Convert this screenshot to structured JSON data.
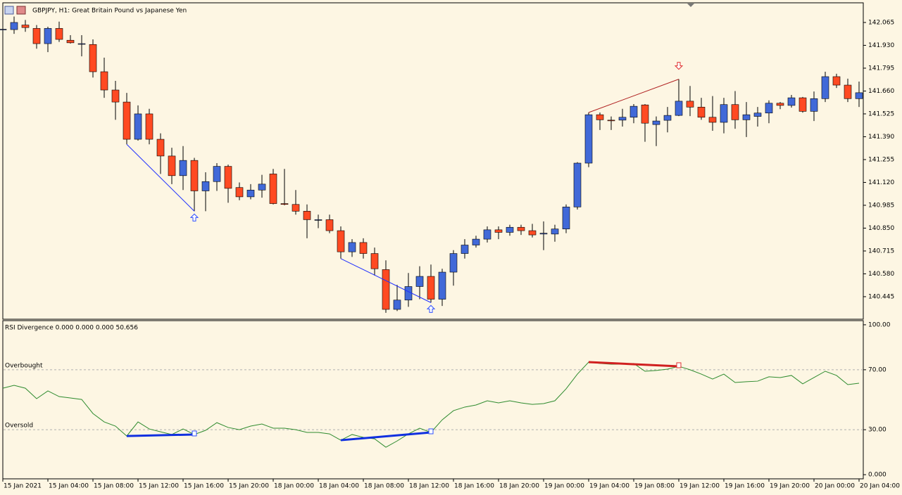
{
  "chart_data": [
    {
      "type": "candlestick",
      "title": "GBPJPY, H1:  Great Britain Pound vs Japanese Yen",
      "categories": [
        "15 Jan 2021",
        null,
        null,
        null,
        "15 Jan 04:00",
        null,
        null,
        null,
        "15 Jan 08:00",
        null,
        null,
        null,
        "15 Jan 12:00",
        null,
        null,
        null,
        "15 Jan 16:00",
        null,
        null,
        null,
        "15 Jan 20:00",
        null,
        null,
        null,
        "18 Jan 00:00",
        null,
        null,
        null,
        "18 Jan 04:00",
        null,
        null,
        null,
        "18 Jan 08:00",
        null,
        null,
        null,
        "18 Jan 12:00",
        null,
        null,
        null,
        "18 Jan 16:00",
        null,
        null,
        null,
        "18 Jan 20:00",
        null,
        null,
        null,
        "19 Jan 00:00",
        null,
        null,
        null,
        "19 Jan 04:00",
        null,
        null,
        null,
        "19 Jan 08:00",
        null,
        null,
        null,
        "19 Jan 12:00",
        null,
        null,
        null,
        "19 Jan 16:00",
        null,
        null,
        null,
        "19 Jan 20:00",
        null,
        null,
        null,
        "20 Jan 00:00",
        null,
        null,
        null,
        "20 Jan 04:00"
      ],
      "open": [
        142.025,
        142.023,
        142.05,
        142.03,
        141.94,
        142.03,
        141.96,
        141.94,
        141.935,
        141.774,
        141.666,
        141.595,
        141.375,
        141.525,
        141.375,
        141.276,
        141.16,
        141.25,
        141.07,
        141.125,
        141.215,
        141.09,
        141.035,
        141.075,
        141.17,
        140.995,
        140.99,
        140.95,
        140.9,
        140.9,
        140.835,
        140.71,
        140.765,
        140.7,
        140.605,
        140.37,
        140.425,
        140.505,
        140.565,
        140.43,
        140.59,
        140.7,
        140.75,
        140.785,
        140.84,
        140.825,
        140.855,
        140.835,
        140.815,
        140.815,
        140.845,
        140.975,
        141.234,
        141.52,
        141.488,
        141.488,
        141.505,
        141.578,
        141.462,
        141.487,
        141.516,
        141.6,
        141.565,
        141.505,
        141.475,
        141.58,
        141.49,
        141.51,
        141.53,
        141.588,
        141.575,
        141.62,
        141.54,
        141.615,
        141.745,
        141.695,
        141.615
      ],
      "high": [
        142.03,
        142.1,
        142.08,
        142.05,
        142.04,
        142.07,
        141.99,
        141.99,
        141.965,
        141.857,
        141.72,
        141.649,
        141.575,
        141.555,
        141.41,
        141.325,
        141.335,
        141.265,
        141.18,
        141.234,
        141.225,
        141.12,
        141.11,
        141.165,
        141.2,
        141.2,
        141.075,
        140.99,
        140.93,
        140.93,
        140.86,
        140.785,
        140.79,
        140.735,
        140.66,
        140.515,
        140.585,
        140.625,
        140.635,
        140.61,
        140.72,
        140.785,
        140.805,
        140.86,
        140.86,
        140.87,
        140.87,
        140.875,
        140.89,
        140.87,
        140.99,
        141.24,
        141.533,
        141.533,
        141.51,
        141.555,
        141.583,
        141.583,
        141.51,
        141.566,
        141.73,
        141.69,
        141.62,
        141.63,
        141.62,
        141.66,
        141.595,
        141.566,
        141.605,
        141.595,
        141.637,
        141.625,
        141.657,
        141.774,
        141.762,
        141.733,
        141.716
      ],
      "low": [
        142.02,
        141.998,
        142.01,
        141.91,
        141.89,
        141.95,
        141.94,
        141.865,
        141.74,
        141.62,
        141.49,
        141.345,
        141.367,
        141.345,
        141.17,
        141.11,
        141.075,
        140.95,
        140.95,
        141.07,
        141.0,
        141.015,
        141.02,
        141.03,
        140.99,
        140.985,
        140.93,
        140.79,
        140.85,
        140.82,
        140.67,
        140.68,
        140.67,
        140.57,
        140.35,
        140.36,
        140.385,
        140.43,
        140.41,
        140.39,
        140.51,
        140.67,
        140.735,
        140.765,
        140.785,
        140.805,
        140.81,
        140.795,
        140.72,
        140.77,
        140.82,
        140.96,
        141.21,
        141.43,
        141.43,
        141.45,
        141.47,
        141.36,
        141.335,
        141.416,
        141.512,
        141.512,
        141.49,
        141.425,
        141.41,
        141.437,
        141.388,
        141.45,
        141.47,
        141.553,
        141.562,
        141.532,
        141.483,
        141.595,
        141.678,
        141.595,
        141.566
      ],
      "close": [
        142.025,
        142.065,
        142.035,
        141.94,
        142.03,
        141.965,
        141.945,
        141.94,
        141.774,
        141.666,
        141.595,
        141.375,
        141.525,
        141.375,
        141.276,
        141.16,
        141.25,
        141.07,
        141.125,
        141.215,
        141.085,
        141.035,
        141.075,
        141.11,
        140.995,
        140.99,
        140.95,
        140.9,
        140.9,
        140.835,
        140.71,
        140.765,
        140.7,
        140.61,
        140.37,
        140.425,
        140.505,
        140.565,
        140.43,
        140.59,
        140.7,
        140.75,
        140.785,
        140.84,
        140.825,
        140.855,
        140.835,
        140.81,
        140.82,
        140.845,
        140.975,
        141.234,
        141.52,
        141.49,
        141.487,
        141.505,
        141.57,
        141.47,
        141.483,
        141.516,
        141.6,
        141.565,
        141.505,
        141.475,
        141.58,
        141.49,
        141.52,
        141.53,
        141.588,
        141.575,
        141.62,
        141.54,
        141.615,
        141.745,
        141.695,
        141.615,
        141.65
      ],
      "up_color": "#4169d8",
      "down_color": "#ff4a22",
      "ylim": [
        140.316,
        142.177
      ],
      "yticks": [
        142.065,
        {
          "value": 141.93,
          "label": "141.930"
        },
        141.795,
        {
          "value": 141.66,
          "label": "141.660"
        },
        141.525,
        {
          "value": 141.39,
          "label": "141.390"
        },
        141.255,
        {
          "value": 141.12,
          "label": "141.120"
        },
        140.985,
        {
          "value": 140.85,
          "label": "140.850"
        },
        140.715,
        {
          "value": 140.58,
          "label": "140.580"
        },
        140.445
      ]
    },
    {
      "type": "line",
      "title": "RSI Divergence 0.000 0.000 0.000 50.656",
      "values": [
        57.7,
        59.6,
        57.7,
        50.7,
        55.9,
        52.1,
        51.2,
        50.2,
        40.8,
        35.2,
        32.4,
        25.8,
        35.2,
        30.5,
        28.6,
        26.8,
        30.5,
        26.8,
        29.6,
        34.7,
        31.5,
        30.0,
        32.4,
        33.8,
        31.0,
        31.0,
        30.0,
        28.2,
        28.2,
        27.2,
        23.0,
        26.8,
        24.9,
        23.9,
        18.3,
        22.5,
        27.2,
        31.0,
        28.2,
        36.6,
        42.7,
        45.1,
        46.5,
        49.3,
        47.9,
        49.3,
        47.9,
        46.9,
        47.4,
        49.3,
        57.3,
        67.1,
        75.1,
        74.2,
        73.7,
        73.7,
        74.2,
        69.0,
        69.5,
        70.4,
        72.3,
        70.0,
        67.1,
        63.8,
        67.1,
        61.5,
        62.0,
        62.4,
        65.3,
        64.8,
        66.2,
        60.6,
        64.8,
        69.0,
        66.2,
        60.1,
        61.0
      ],
      "color": "#2e8b2e",
      "ylim": [
        -2.3,
        102.3
      ],
      "yticks": [
        {
          "value": 100,
          "label": "100.00"
        },
        {
          "value": 70,
          "label": "70.00"
        },
        {
          "value": 30,
          "label": "30.00"
        },
        {
          "value": 0,
          "label": "0.000"
        }
      ],
      "levels": [
        {
          "value": 70,
          "label": "Overbought"
        },
        {
          "value": 30,
          "label": "Oversold"
        }
      ]
    }
  ]
}
